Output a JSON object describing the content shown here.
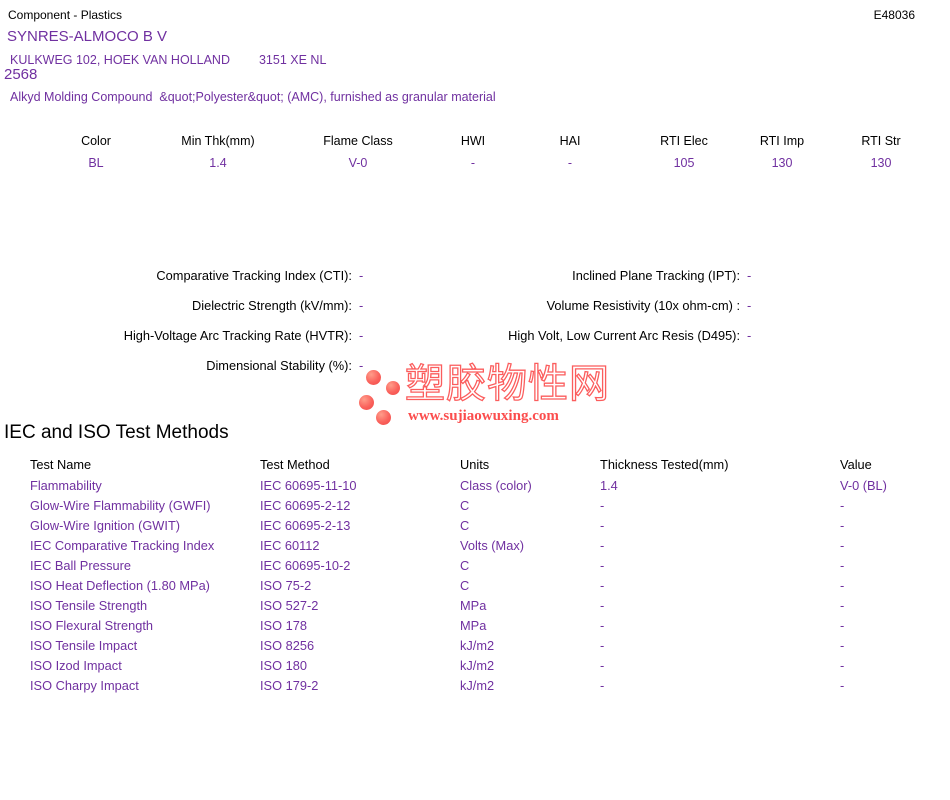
{
  "header": {
    "doc_type": "Component - Plastics",
    "file_number": "E48036"
  },
  "company": {
    "name": "SYNRES-ALMOCO B V",
    "address": "KULKWEG 102, HOEK VAN HOLLAND",
    "postal_code": "3151 XE NL",
    "grade_number": "2568",
    "description": "Alkyd Molding Compound  &quot;Polyester&quot; (AMC), furnished as granular material"
  },
  "ratings_table": {
    "columns": [
      "Color",
      "Min Thk(mm)",
      "Flame Class",
      "HWI",
      "HAI",
      "RTI Elec",
      "RTI Imp",
      "RTI Str"
    ],
    "values": [
      "BL",
      "1.4",
      "V-0",
      "-",
      "-",
      "105",
      "130",
      "130"
    ]
  },
  "electrical_properties": {
    "left_rows": [
      {
        "label": "Comparative Tracking Index (CTI):",
        "value": "-"
      },
      {
        "label": "Dielectric Strength (kV/mm):",
        "value": "-"
      },
      {
        "label": "High-Voltage Arc Tracking Rate (HVTR):",
        "value": "-"
      },
      {
        "label": "Dimensional Stability (%):",
        "value": "-"
      }
    ],
    "right_rows": [
      {
        "label": "Inclined Plane Tracking (IPT):",
        "value": "-"
      },
      {
        "label": "Volume Resistivity (10x ohm-cm) :",
        "value": "-"
      },
      {
        "label": "High Volt, Low Current Arc Resis (D495):",
        "value": "-"
      }
    ]
  },
  "watermark": {
    "site_name": "塑胶物性网",
    "site_url": "www.sujiaowuxing.com",
    "accent_color": "#fb5d5d"
  },
  "test_methods": {
    "title": "IEC and ISO Test Methods",
    "columns": [
      "Test Name",
      "Test Method",
      "Units",
      "Thickness Tested(mm)",
      "Value"
    ],
    "rows": [
      [
        "Flammability",
        "IEC 60695-11-10",
        "Class (color)",
        "1.4",
        "V-0 (BL)"
      ],
      [
        "Glow-Wire Flammability (GWFI)",
        "IEC 60695-2-12",
        "C",
        "-",
        "-"
      ],
      [
        "Glow-Wire Ignition (GWIT)",
        "IEC 60695-2-13",
        "C",
        "-",
        "-"
      ],
      [
        "IEC Comparative Tracking Index",
        "IEC 60112",
        "Volts (Max)",
        "-",
        "-"
      ],
      [
        "IEC Ball Pressure",
        "IEC 60695-10-2",
        "C",
        "-",
        "-"
      ],
      [
        "ISO Heat Deflection (1.80 MPa)",
        "ISO 75-2",
        "C",
        "-",
        "-"
      ],
      [
        "ISO Tensile Strength",
        "ISO 527-2",
        "MPa",
        "-",
        "-"
      ],
      [
        "ISO Flexural Strength",
        "ISO 178",
        "MPa",
        "-",
        "-"
      ],
      [
        "ISO Tensile Impact",
        "ISO 8256",
        "kJ/m2",
        "-",
        "-"
      ],
      [
        "ISO Izod Impact",
        "ISO 180",
        "kJ/m2",
        "-",
        "-"
      ],
      [
        "ISO Charpy Impact",
        "ISO 179-2",
        "kJ/m2",
        "-",
        "-"
      ]
    ]
  },
  "colors": {
    "data_text": "#7030A0",
    "heading_text": "#000000",
    "watermark": "#fb5d5d"
  }
}
